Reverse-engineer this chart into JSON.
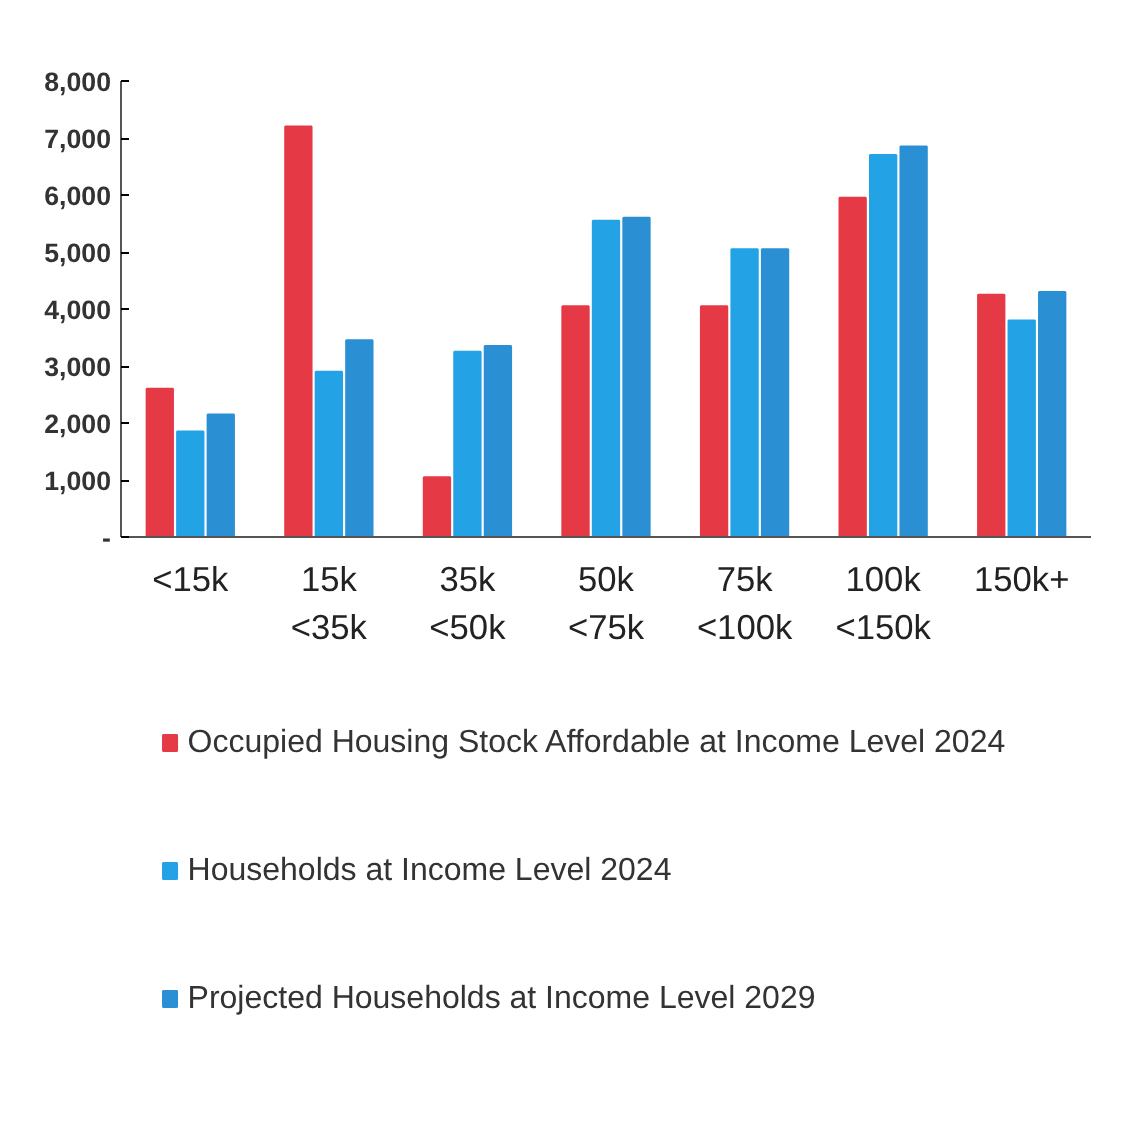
{
  "chart_data": {
    "type": "bar",
    "categories": [
      "<15k",
      "15k\n<35k",
      "35k\n<50k",
      "50k\n<75k",
      "75k\n<100k",
      "100k\n<150k",
      "150k+"
    ],
    "series": [
      {
        "name": "Occupied Housing Stock Affordable at Income Level 2024",
        "color": "#e53a45",
        "values": [
          2600,
          7200,
          1050,
          4050,
          4050,
          5950,
          4250
        ]
      },
      {
        "name": "Households at Income Level 2024",
        "color": "#23a2e6",
        "values": [
          1850,
          2900,
          3250,
          5550,
          5050,
          6700,
          3800
        ]
      },
      {
        "name": "Projected Households at Income Level 2029",
        "color": "#2b8fd4",
        "values": [
          2150,
          3450,
          3350,
          5600,
          5050,
          6850,
          4300
        ]
      }
    ],
    "ylim": [
      0,
      8000
    ],
    "yticks": [
      {
        "value": 0,
        "label": "-"
      },
      {
        "value": 1000,
        "label": "1,000"
      },
      {
        "value": 2000,
        "label": "2,000"
      },
      {
        "value": 3000,
        "label": "3,000"
      },
      {
        "value": 4000,
        "label": "4,000"
      },
      {
        "value": 5000,
        "label": "5,000"
      },
      {
        "value": 6000,
        "label": "6,000"
      },
      {
        "value": 7000,
        "label": "7,000"
      },
      {
        "value": 8000,
        "label": "8,000"
      }
    ],
    "grid": false,
    "legend": "bottom"
  }
}
